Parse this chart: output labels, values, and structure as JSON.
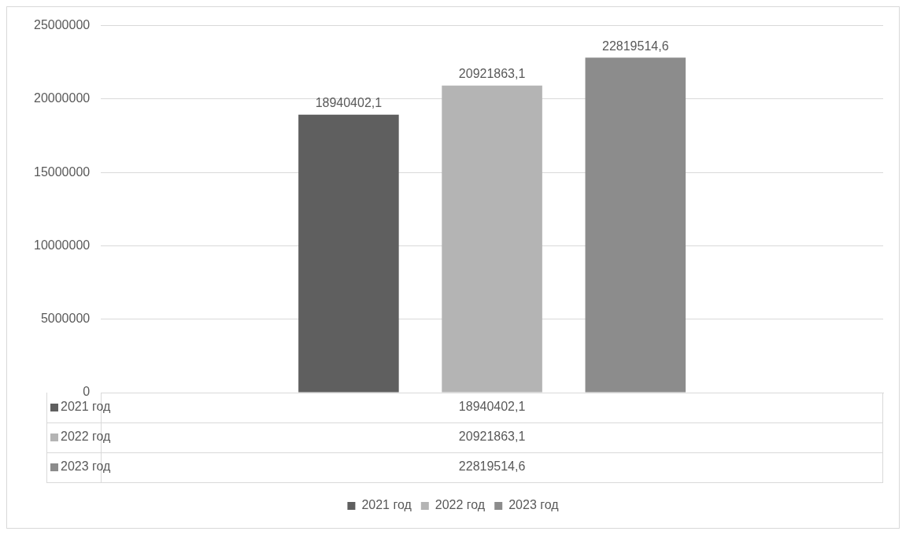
{
  "chart_data": {
    "type": "bar",
    "categories": [
      null
    ],
    "series": [
      {
        "name": "2021 год",
        "color": "#5f5f5f",
        "values": [
          18940402.1
        ],
        "value_labels": [
          "18940402,1"
        ]
      },
      {
        "name": "2022 год",
        "color": "#b4b4b4",
        "values": [
          20921863.1
        ],
        "value_labels": [
          "20921863,1"
        ]
      },
      {
        "name": "2023 год",
        "color": "#8c8c8c",
        "values": [
          22819514.6
        ],
        "value_labels": [
          "22819514,6"
        ]
      }
    ],
    "ylim": [
      0,
      25000000
    ],
    "yticks": [
      0,
      5000000,
      10000000,
      15000000,
      20000000,
      25000000
    ],
    "grid": "y",
    "legend": "bottom"
  }
}
